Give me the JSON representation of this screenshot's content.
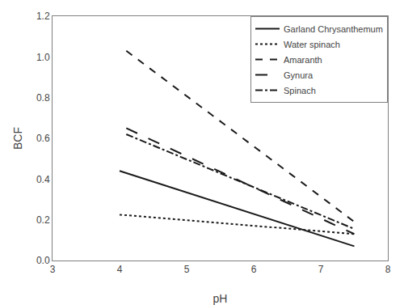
{
  "chart_data": {
    "type": "line",
    "xlabel": "pH",
    "ylabel": "BCF",
    "xlim": [
      3,
      8
    ],
    "ylim": [
      0.0,
      1.2
    ],
    "xticks": [
      3,
      4,
      5,
      6,
      7,
      8
    ],
    "yticks": [
      {
        "value": 0.0,
        "label": "0.0"
      },
      0.2,
      0.4,
      0.6,
      0.8,
      {
        "value": 1.0,
        "label": "1.0"
      },
      1.2
    ],
    "grid": false,
    "legend": "upper right",
    "series": [
      {
        "name": "Garland Chrysanthemum",
        "color": "#1a1a1a",
        "line_style": "solid",
        "x": [
          4.0,
          7.5
        ],
        "values": [
          0.44,
          0.07
        ]
      },
      {
        "name": "Water spinach",
        "color": "#1a1a1a",
        "line_style": "dotted",
        "x": [
          4.0,
          7.5
        ],
        "values": [
          0.225,
          0.13
        ]
      },
      {
        "name": "Amaranth",
        "color": "#1a1a1a",
        "line_style": "dashed",
        "x": [
          4.1,
          7.5
        ],
        "values": [
          1.03,
          0.19
        ]
      },
      {
        "name": "Gynura",
        "color": "#1a1a1a",
        "line_style": "longdash",
        "x": [
          4.1,
          7.5
        ],
        "values": [
          0.65,
          0.13
        ]
      },
      {
        "name": "Spinach",
        "color": "#1a1a1a",
        "line_style": "dashdot",
        "x": [
          4.1,
          7.5
        ],
        "values": [
          0.62,
          0.155
        ]
      }
    ]
  }
}
